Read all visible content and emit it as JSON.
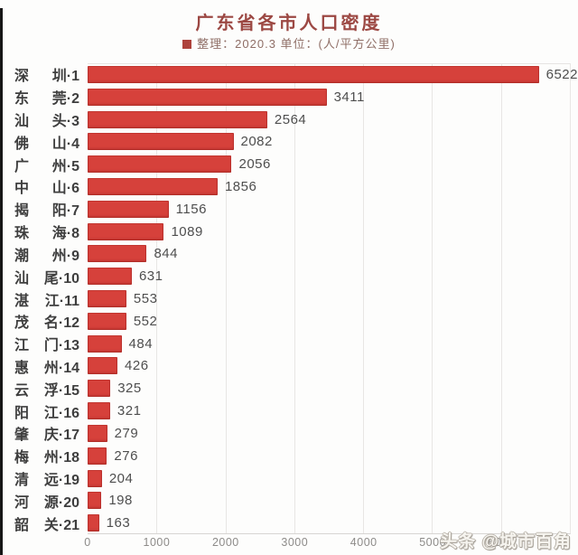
{
  "page": {
    "watermark": "头条 @城市百角"
  },
  "header": {
    "title": "广东省各市人口密度",
    "subtitle": "整理：2020.3 单位：(人/平方公里)"
  },
  "colors": {
    "bar": "#d6413b",
    "title": "#9c4843",
    "legend_square": "#ae423c"
  },
  "chart_data": {
    "type": "bar",
    "orientation": "horizontal",
    "title": "广东省各市人口密度",
    "subtitle": "整理：2020.3 单位：(人/平方公里)",
    "unit": "人/平方公里",
    "categories": [
      "深 圳·1",
      "东 莞·2",
      "汕 头·3",
      "佛 山·4",
      "广 州·5",
      "中 山·6",
      "揭 阳·7",
      "珠 海·8",
      "潮 州·9",
      "汕 尾·10",
      "湛 江·11",
      "茂 名·12",
      "江 门·13",
      "惠 州·14",
      "云 浮·15",
      "阳 江·16",
      "肇 庆·17",
      "梅 州·18",
      "清 远·19",
      "河 源·20",
      "韶 关·21"
    ],
    "values": [
      6522,
      3411,
      2564,
      2082,
      2056,
      1856,
      1156,
      1089,
      844,
      631,
      553,
      552,
      484,
      426,
      325,
      321,
      279,
      276,
      204,
      198,
      163
    ],
    "xlim": [
      0,
      7000
    ],
    "x_ticks": [
      0,
      1000,
      2000,
      3000,
      4000,
      5000,
      6000
    ],
    "grid": true,
    "grid_interval": 1000,
    "legend_position": "none",
    "value_labels": "outside-end",
    "bar_color": "#d6413b"
  }
}
